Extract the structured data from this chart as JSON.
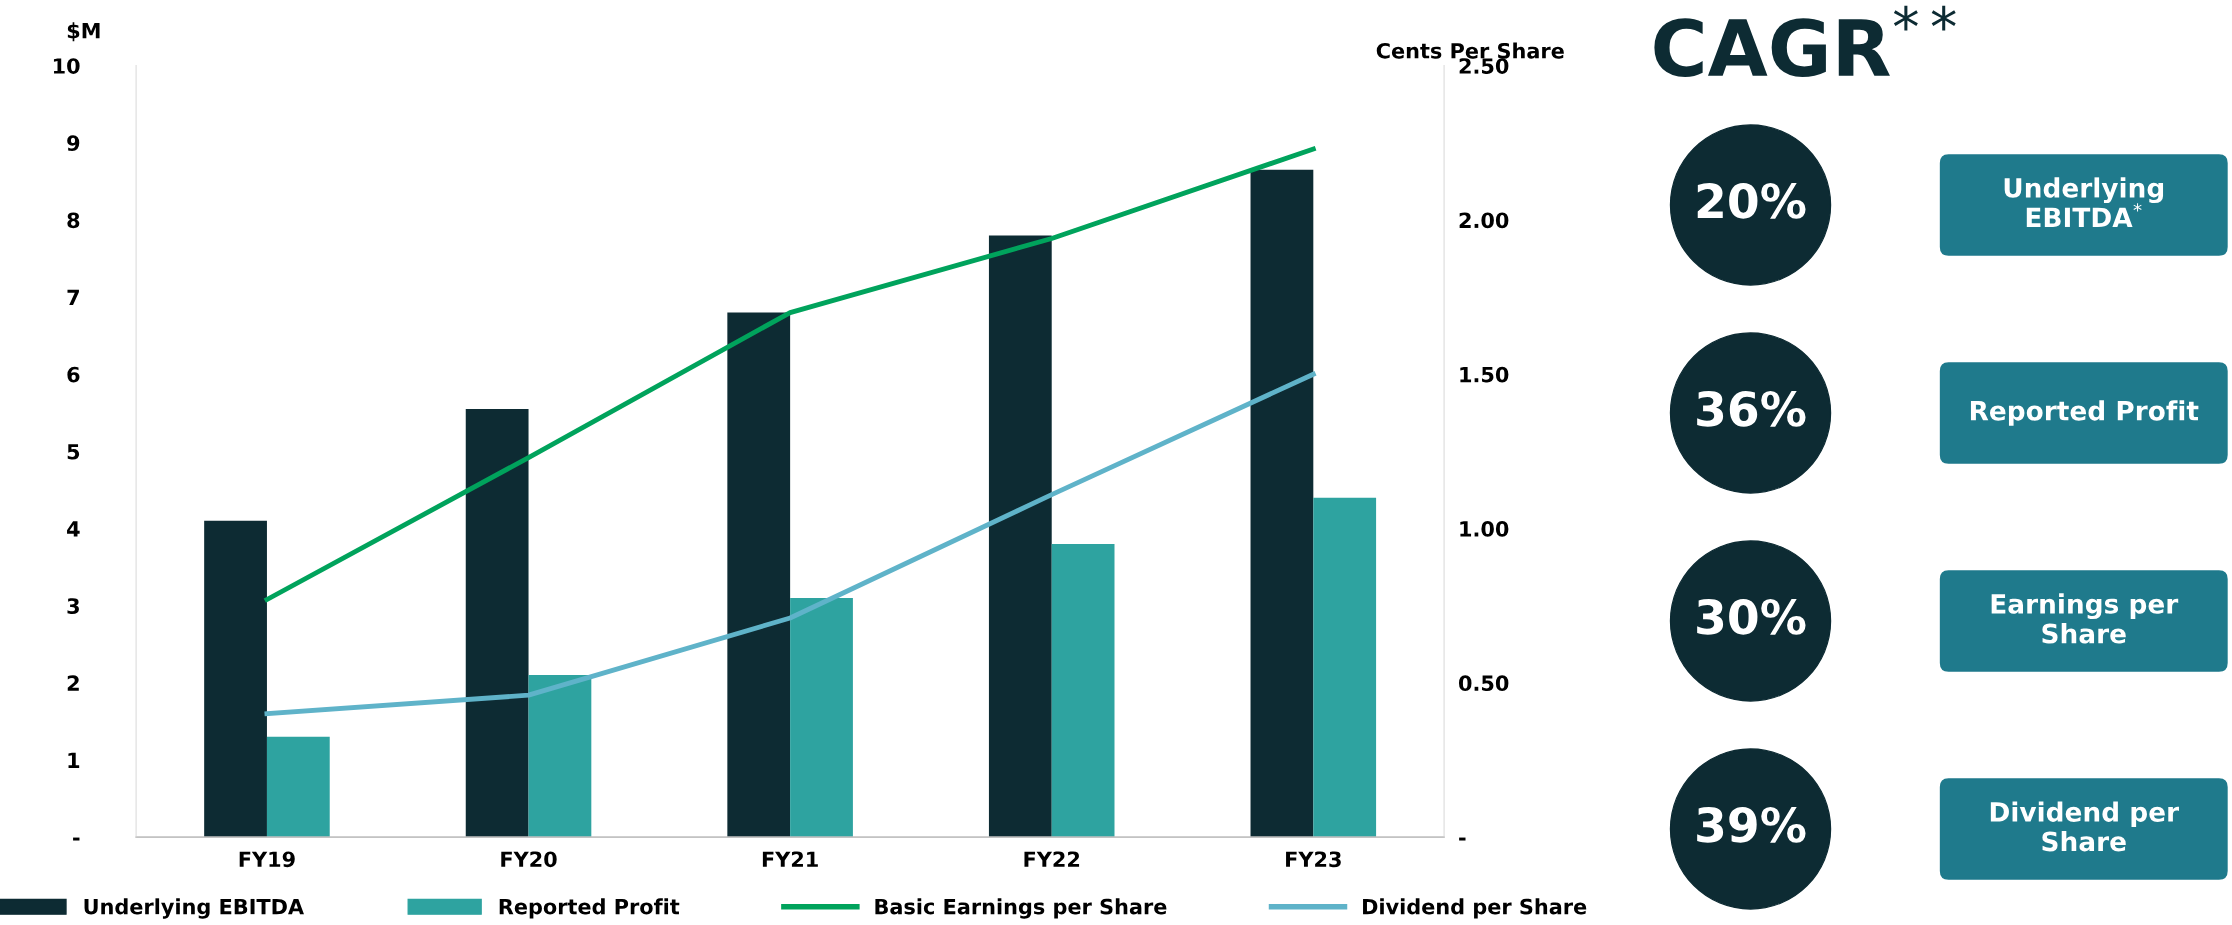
{
  "chart_data": [
    {
      "type": "bar",
      "categories": [
        "FY19",
        "FY20",
        "FY21",
        "FY22",
        "FY23"
      ],
      "ylabel": "$M",
      "y2label": "Cents Per Share",
      "series": [
        {
          "name": "Underlying EBITDA",
          "color": "#0d2b33",
          "values": [
            4.1,
            5.55,
            6.8,
            7.8,
            8.65
          ]
        },
        {
          "name": "Reported Profit",
          "color": "#2ea3a0",
          "values": [
            1.3,
            2.1,
            3.1,
            3.8,
            4.4
          ]
        },
        {
          "name": "Basic Earnings per Share",
          "type": "line",
          "axis": "y2",
          "color": "#00a35c",
          "values": [
            0.77,
            1.23,
            1.7,
            1.94,
            2.23
          ]
        },
        {
          "name": "Dividend per Share",
          "type": "line",
          "axis": "y2",
          "color": "#5fb3c9",
          "values": [
            0.4,
            0.46,
            0.71,
            1.11,
            1.5
          ]
        }
      ],
      "ylim": [
        0,
        10
      ],
      "yticks": [
        {
          "value": 0,
          "label": "-"
        },
        1,
        2,
        3,
        4,
        5,
        6,
        7,
        8,
        9,
        10
      ],
      "y2lim": [
        0,
        2.5
      ],
      "y2ticks": [
        {
          "value": 0,
          "label": "-"
        },
        {
          "value": 0.5,
          "label": "0.50"
        },
        {
          "value": 1.0,
          "label": "1.00"
        },
        {
          "value": 1.5,
          "label": "1.50"
        },
        {
          "value": 2.0,
          "label": "2.00"
        },
        {
          "value": 2.5,
          "label": "2.50"
        }
      ],
      "grid": false,
      "legend": "bottom",
      "marker": "none",
      "line_style": "solid"
    },
    {
      "type": "other",
      "title": "CAGR$^{**}$",
      "categories": [
        "Underlying\nEBITDA$^{*}$",
        "Reported Profit",
        "Earnings per\nShare",
        "Dividend per\nShare"
      ],
      "value_labels": [
        "20%",
        "36%",
        "30%",
        "39%"
      ],
      "color": "#0d2b33",
      "colors": [
        "#1f7a8c",
        "#1f7a8c",
        "#1f7a8c",
        "#1f7a8c"
      ]
    }
  ]
}
